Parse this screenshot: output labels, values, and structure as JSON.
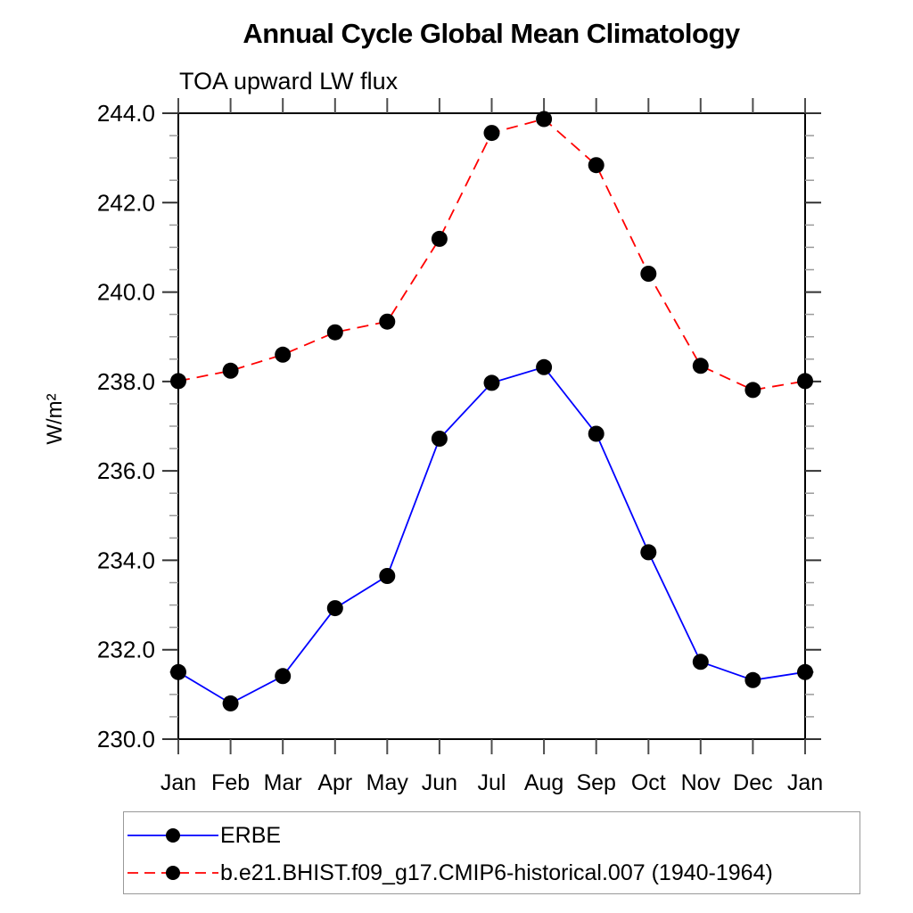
{
  "page": {
    "title": "Annual Cycle Global Mean Climatology",
    "subtitle": "TOA upward LW flux"
  },
  "chart_data": {
    "type": "line",
    "title": "Annual Cycle Global Mean Climatology",
    "subtitle": "TOA upward LW flux",
    "xlabel": "",
    "ylabel": "W/m²",
    "x_categories": [
      "Jan",
      "Feb",
      "Mar",
      "Apr",
      "May",
      "Jun",
      "Jul",
      "Aug",
      "Sep",
      "Oct",
      "Nov",
      "Dec",
      "Jan"
    ],
    "ylim": [
      230.0,
      244.0
    ],
    "ytick_interval": 2.0,
    "ytick_minor_interval": 0.5,
    "ytick_labels": [
      "230.0",
      "232.0",
      "234.0",
      "236.0",
      "238.0",
      "240.0",
      "242.0",
      "244.0"
    ],
    "grid": false,
    "legend_position": "bottom",
    "series": [
      {
        "name": "ERBE",
        "color": "#0000ff",
        "line_style": "solid",
        "marker": "filled-circle",
        "marker_color": "#000000",
        "values": [
          231.5,
          230.8,
          231.41,
          232.93,
          233.65,
          236.72,
          237.97,
          238.32,
          236.83,
          234.18,
          231.73,
          231.32,
          231.5
        ]
      },
      {
        "name": "b.e21.BHIST.f09_g17.CMIP6-historical.007 (1940-1964)",
        "color": "#ff0000",
        "line_style": "dashed",
        "marker": "filled-circle",
        "marker_color": "#000000",
        "values": [
          238.01,
          238.24,
          238.6,
          239.1,
          239.34,
          241.19,
          243.56,
          243.87,
          242.84,
          240.41,
          238.35,
          237.81,
          238.01
        ]
      }
    ]
  },
  "colors": {
    "axis": "#000000",
    "major_tick": "#333333",
    "minor_tick": "#9a9a9a",
    "month_tick": "#4d4d4d",
    "legend_border": "#999999"
  }
}
